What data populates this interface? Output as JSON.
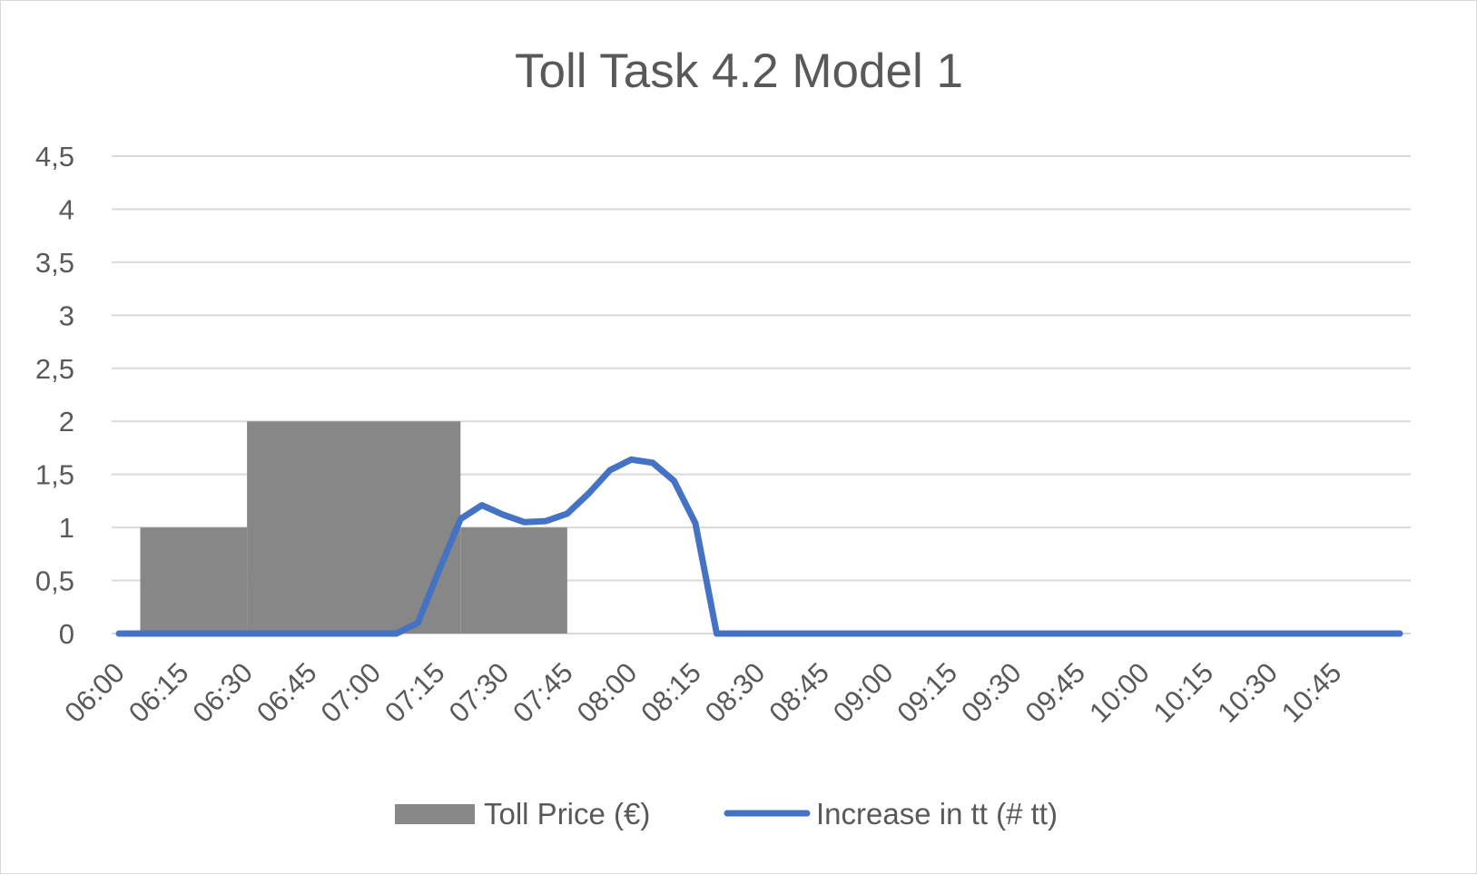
{
  "chart_data": {
    "type": "bar",
    "title": "Toll Task 4.2 Model 1",
    "xlabel": "",
    "ylabel": "",
    "ylim": [
      0,
      4.5
    ],
    "yticks": [
      "0",
      "0,5",
      "1",
      "1,5",
      "2",
      "2,5",
      "3",
      "3,5",
      "4",
      "4,5"
    ],
    "ytick_values": [
      0,
      0.5,
      1,
      1.5,
      2,
      2.5,
      3,
      3.5,
      4,
      4.5
    ],
    "xtick_labels": [
      "06:00",
      "06:15",
      "06:30",
      "06:45",
      "07:00",
      "07:15",
      "07:30",
      "07:45",
      "08:00",
      "08:15",
      "08:30",
      "08:45",
      "09:00",
      "09:15",
      "09:30",
      "09:45",
      "10:00",
      "10:15",
      "10:30",
      "10:45"
    ],
    "x_range": [
      "06:00",
      "11:00"
    ],
    "grid": true,
    "legend": "bottom",
    "series": [
      {
        "name": "Toll Price (€)",
        "type": "step-bar",
        "color": "#878787",
        "segments": [
          {
            "start": "06:05",
            "end": "06:30",
            "value": 1
          },
          {
            "start": "06:30",
            "end": "07:20",
            "value": 2
          },
          {
            "start": "07:20",
            "end": "07:45",
            "value": 1
          }
        ]
      },
      {
        "name": "Increase in tt (# tt)",
        "type": "line",
        "color": "#4472c4",
        "x": [
          "06:00",
          "06:05",
          "06:10",
          "06:15",
          "06:20",
          "06:25",
          "06:30",
          "06:35",
          "06:40",
          "06:45",
          "06:50",
          "06:55",
          "07:00",
          "07:05",
          "07:10",
          "07:15",
          "07:20",
          "07:25",
          "07:30",
          "07:35",
          "07:40",
          "07:45",
          "07:50",
          "07:55",
          "08:00",
          "08:05",
          "08:10",
          "08:15",
          "08:20",
          "08:25",
          "08:30",
          "08:35",
          "08:40",
          "08:45",
          "08:50",
          "08:55",
          "09:00",
          "09:05",
          "09:10",
          "09:15",
          "09:20",
          "09:25",
          "09:30",
          "09:35",
          "09:40",
          "09:45",
          "09:50",
          "09:55",
          "10:00",
          "10:05",
          "10:10",
          "10:15",
          "10:20",
          "10:25",
          "10:30",
          "10:35",
          "10:40",
          "10:45",
          "10:50",
          "10:55",
          "11:00"
        ],
        "values": [
          0,
          0,
          0,
          0,
          0,
          0,
          0,
          0,
          0,
          0,
          0,
          0,
          0,
          0,
          0.1,
          0.6,
          1.08,
          1.21,
          1.12,
          1.05,
          1.06,
          1.13,
          1.32,
          1.54,
          1.64,
          1.61,
          1.44,
          1.04,
          0,
          0,
          0,
          0,
          0,
          0,
          0,
          0,
          0,
          0,
          0,
          0,
          0,
          0,
          0,
          0,
          0,
          0,
          0,
          0,
          0,
          0,
          0,
          0,
          0,
          0,
          0,
          0,
          0,
          0,
          0,
          0,
          0
        ]
      }
    ]
  }
}
